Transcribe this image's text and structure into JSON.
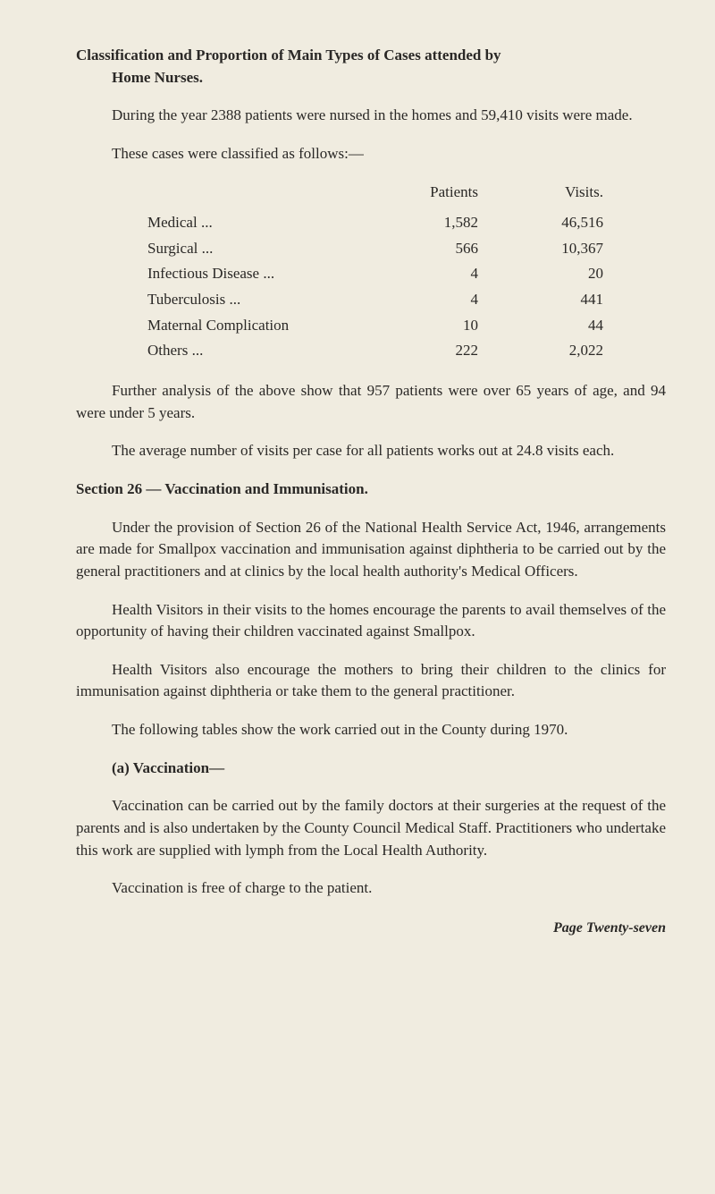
{
  "heading1_line1": "Classification and Proportion of Main Types of Cases attended by",
  "heading1_line2": "Home Nurses.",
  "para1": "During the year 2388 patients were nursed in the homes and 59,410 visits were made.",
  "para2": "These cases were classified as follows:—",
  "table": {
    "header_patients": "Patients",
    "header_visits": "Visits.",
    "rows": [
      {
        "label": "Medical",
        "dots": "...",
        "patients": "1,582",
        "visits": "46,516"
      },
      {
        "label": "Surgical",
        "dots": "...",
        "patients": "566",
        "visits": "10,367"
      },
      {
        "label": "Infectious Disease",
        "dots": "...",
        "patients": "4",
        "visits": "20"
      },
      {
        "label": "Tuberculosis",
        "dots": "...",
        "patients": "4",
        "visits": "441"
      },
      {
        "label": "Maternal Complication",
        "dots": "",
        "patients": "10",
        "visits": "44"
      },
      {
        "label": "Others",
        "dots": "...",
        "patients": "222",
        "visits": "2,022"
      }
    ]
  },
  "para3": "Further analysis of the above show that 957 patients were over 65 years of age, and 94 were under 5 years.",
  "para4": "The average number of visits per case for all patients works out at 24.8 visits each.",
  "heading2": "Section 26 — Vaccination and Immunisation.",
  "para5": "Under the provision of Section 26 of the National Health Service Act, 1946, arrangements are made for Smallpox vaccination and immunisation against diphtheria to be carried out by the general practitioners and at clinics by the local health authority's Medical Officers.",
  "para6": "Health Visitors in their visits to the homes encourage the parents to avail themselves of the opportunity of having their children vaccinated against Smallpox.",
  "para7": "Health Visitors also encourage the mothers to bring their children to the clinics for immunisation against diphtheria or take them to the general practitioner.",
  "para8": "The following tables show the work carried out in the County during 1970.",
  "subheading_a": "(a) Vaccination—",
  "para9": "Vaccination can be carried out by the family doctors at their surgeries at the request of the parents and is also undertaken by the County Council Medical Staff. Practitioners who under­take this work are supplied with lymph from the Local Health Authority.",
  "para10": "Vaccination is free of charge to the patient.",
  "footer": "Page Twenty-seven",
  "colors": {
    "background": "#f0ece0",
    "text": "#2a2826"
  },
  "typography": {
    "body_fontsize": 17,
    "heading_weight": "bold"
  }
}
